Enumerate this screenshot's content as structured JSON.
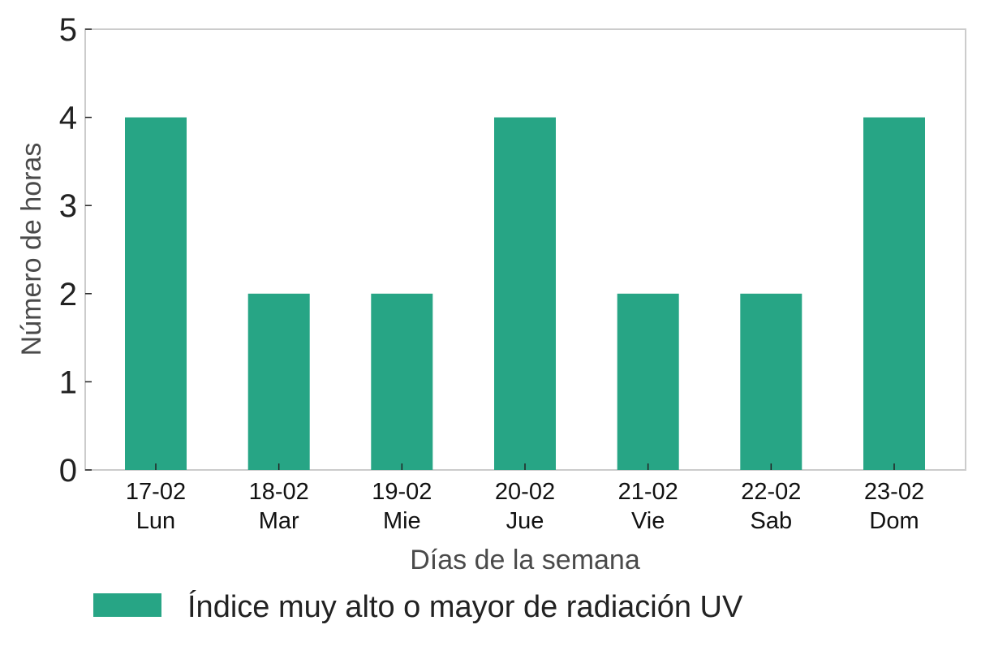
{
  "chart_data": {
    "type": "bar",
    "categories": [
      [
        "17-02",
        "Lun"
      ],
      [
        "18-02",
        "Mar"
      ],
      [
        "19-02",
        "Mie"
      ],
      [
        "20-02",
        "Jue"
      ],
      [
        "21-02",
        "Vie"
      ],
      [
        "22-02",
        "Sab"
      ],
      [
        "23-02",
        "Dom"
      ]
    ],
    "series": [
      {
        "name": "Índice muy alto o mayor de radiación UV",
        "values": [
          4,
          2,
          2,
          4,
          2,
          2,
          4
        ],
        "color": "#27a585"
      }
    ],
    "xlabel": "Días de la semana",
    "ylabel": "Número de horas",
    "ylim": [
      0,
      5
    ],
    "yticks": [
      0,
      1,
      2,
      3,
      4,
      5
    ],
    "grid": false,
    "legend_position": "bottom-left",
    "frame_color": "#cccccc"
  }
}
